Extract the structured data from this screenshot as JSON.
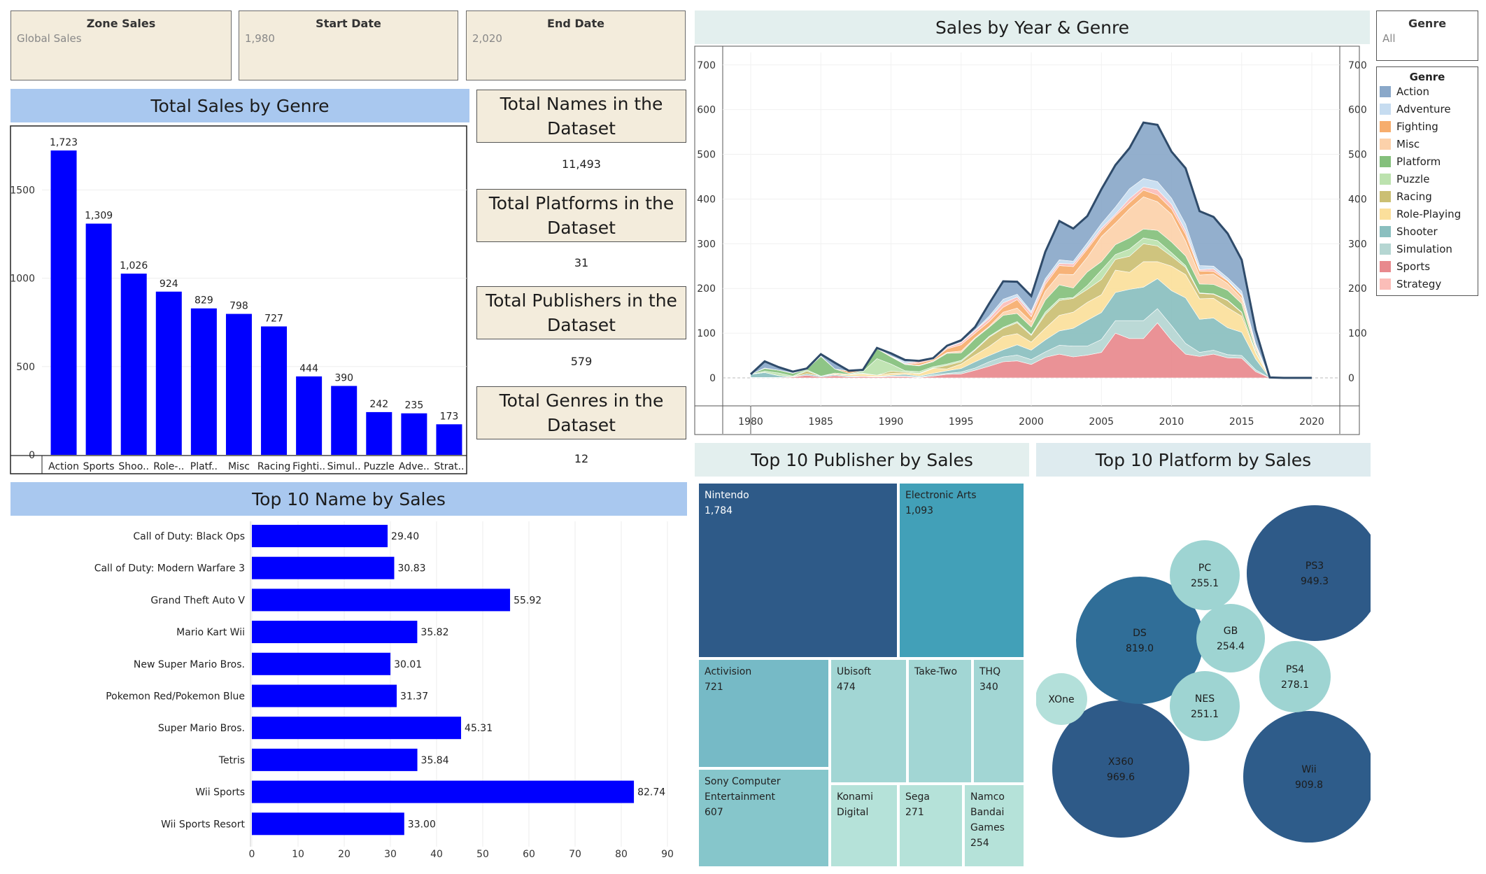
{
  "filters": {
    "zone": {
      "title": "Zone Sales",
      "value": "Global Sales"
    },
    "start": {
      "title": "Start Date",
      "value": "1,980"
    },
    "end": {
      "title": "End Date",
      "value": "2,020"
    },
    "genre": {
      "title": "Genre",
      "value": "All"
    }
  },
  "titles": {
    "genre_sales": "Total Sales by Genre",
    "year_genre": "Sales by Year & Genre",
    "top_names": "Top 10 Name by Sales",
    "top_publishers": "Top 10 Publisher by Sales",
    "top_platforms": "Top 10 Platform by Sales"
  },
  "kpis": [
    {
      "label": "Total Names in the Dataset",
      "value": "11,493"
    },
    {
      "label": "Total Platforms in the Dataset",
      "value": "31"
    },
    {
      "label": "Total Publishers in the Dataset",
      "value": "579"
    },
    {
      "label": "Total Genres in the Dataset",
      "value": "12"
    }
  ],
  "colors": {
    "bar": "#0000ff",
    "title_blue": "#a9c8ef",
    "title_teal": "#e3efee",
    "card": "#f3ecdc"
  },
  "chart_data": [
    {
      "id": "genre_sales",
      "type": "bar",
      "title": "Total Sales by Genre",
      "categories": [
        "Action",
        "Sports",
        "Shoo..",
        "Role-..",
        "Platf..",
        "Misc",
        "Racing",
        "Fighti..",
        "Simul..",
        "Puzzle",
        "Adve..",
        "Strat.."
      ],
      "values": [
        1723,
        1309,
        1026,
        924,
        829,
        798,
        727,
        444,
        390,
        242,
        235,
        173
      ],
      "value_labels": [
        "1,723",
        "1,309",
        "1,026",
        "924",
        "829",
        "798",
        "727",
        "444",
        "390",
        "242",
        "235",
        "173"
      ],
      "yticks": [
        "0",
        "500",
        "1000",
        "1500"
      ],
      "ylim": [
        0,
        1850
      ],
      "color": "#0000ff",
      "grid": true
    },
    {
      "id": "year_genre",
      "type": "area",
      "title": "Sales by Year & Genre",
      "x": [
        1980,
        1981,
        1982,
        1983,
        1984,
        1985,
        1986,
        1987,
        1988,
        1989,
        1990,
        1991,
        1992,
        1993,
        1994,
        1995,
        1996,
        1997,
        1998,
        1999,
        2000,
        2001,
        2002,
        2003,
        2004,
        2005,
        2006,
        2007,
        2008,
        2009,
        2010,
        2011,
        2012,
        2013,
        2014,
        2015,
        2016,
        2017,
        2018,
        2019,
        2020
      ],
      "series": [
        {
          "name": "Sports",
          "color": "#e8898d",
          "values": [
            1,
            1,
            1,
            2,
            6,
            2,
            5,
            2,
            3,
            2,
            3,
            3,
            1,
            4,
            8,
            9,
            17,
            26,
            36,
            38,
            30,
            46,
            53,
            47,
            51,
            57,
            100,
            88,
            88,
            123,
            84,
            53,
            48,
            53,
            45,
            44,
            14,
            0,
            0,
            0,
            0
          ]
        },
        {
          "name": "Simulation",
          "color": "#b5d6d2",
          "values": [
            0,
            0,
            0,
            0,
            0,
            0,
            0,
            0,
            0,
            0,
            1,
            1,
            1,
            3,
            2,
            4,
            5,
            10,
            11,
            13,
            11,
            12,
            20,
            24,
            20,
            29,
            28,
            40,
            40,
            32,
            33,
            24,
            9,
            9,
            7,
            6,
            4,
            0,
            0,
            0,
            0
          ]
        },
        {
          "name": "Shooter",
          "color": "#8abfbf",
          "values": [
            7,
            11,
            4,
            0,
            3,
            2,
            2,
            2,
            1,
            1,
            2,
            4,
            2,
            3,
            6,
            8,
            14,
            14,
            16,
            23,
            21,
            27,
            32,
            40,
            58,
            60,
            63,
            70,
            75,
            67,
            78,
            102,
            74,
            72,
            60,
            52,
            24,
            0,
            0,
            0,
            0
          ]
        },
        {
          "name": "Role-Playing",
          "color": "#fbdf9b",
          "values": [
            0,
            0,
            0,
            0,
            0,
            0,
            2,
            3,
            5,
            3,
            4,
            3,
            5,
            11,
            4,
            10,
            15,
            20,
            30,
            25,
            18,
            26,
            35,
            36,
            40,
            40,
            50,
            38,
            57,
            38,
            55,
            52,
            46,
            44,
            45,
            36,
            14,
            0,
            0,
            0,
            0
          ]
        },
        {
          "name": "Racing",
          "color": "#cbbf73",
          "values": [
            0,
            0,
            0,
            0,
            6,
            0,
            2,
            1,
            1,
            0,
            5,
            2,
            1,
            1,
            8,
            5,
            11,
            21,
            18,
            24,
            15,
            31,
            33,
            31,
            29,
            34,
            24,
            36,
            40,
            35,
            22,
            16,
            12,
            9,
            16,
            8,
            2,
            0,
            0,
            0,
            0
          ]
        },
        {
          "name": "Puzzle",
          "color": "#bce2ae",
          "values": [
            0,
            3,
            6,
            2,
            3,
            0,
            0,
            0,
            4,
            37,
            16,
            3,
            4,
            3,
            3,
            3,
            2,
            2,
            2,
            3,
            2,
            5,
            4,
            2,
            9,
            21,
            11,
            16,
            13,
            12,
            8,
            4,
            1,
            1,
            1,
            1,
            0,
            0,
            0,
            0,
            0
          ]
        },
        {
          "name": "Platform",
          "color": "#84c07c",
          "values": [
            0,
            6,
            6,
            6,
            1,
            44,
            9,
            2,
            2,
            22,
            16,
            14,
            13,
            11,
            24,
            17,
            24,
            20,
            27,
            18,
            17,
            27,
            31,
            21,
            30,
            19,
            22,
            25,
            20,
            23,
            24,
            22,
            20,
            21,
            22,
            19,
            5,
            0,
            0,
            0,
            0
          ]
        },
        {
          "name": "Misc",
          "color": "#fcd1aa",
          "values": [
            0,
            1,
            0,
            1,
            1,
            0,
            0,
            0,
            0,
            1,
            2,
            0,
            1,
            2,
            2,
            4,
            2,
            2,
            7,
            12,
            12,
            20,
            24,
            30,
            33,
            56,
            48,
            65,
            72,
            64,
            62,
            33,
            20,
            23,
            15,
            12,
            6,
            0,
            0,
            0,
            0
          ]
        },
        {
          "name": "Fighting",
          "color": "#f6ad6d",
          "values": [
            0,
            0,
            0,
            0,
            0,
            1,
            0,
            5,
            0,
            0,
            0,
            0,
            5,
            3,
            8,
            14,
            10,
            11,
            11,
            19,
            11,
            15,
            19,
            18,
            18,
            13,
            16,
            14,
            15,
            15,
            12,
            15,
            9,
            6,
            6,
            6,
            4,
            0,
            0,
            0,
            0
          ]
        },
        {
          "name": "Strategy",
          "color": "#fbbdb8",
          "values": [
            0,
            0,
            0,
            0,
            0,
            0,
            0,
            0,
            0,
            0,
            0,
            2,
            4,
            1,
            3,
            5,
            6,
            7,
            10,
            6,
            8,
            7,
            5,
            6,
            5,
            6,
            4,
            9,
            7,
            12,
            10,
            8,
            3,
            6,
            1,
            2,
            1,
            0,
            0,
            0,
            0
          ]
        },
        {
          "name": "Adventure",
          "color": "#c6dcf0",
          "values": [
            0,
            0,
            0,
            0,
            0,
            0,
            0,
            0,
            0,
            0,
            0,
            4,
            0,
            0,
            1,
            1,
            1,
            5,
            8,
            6,
            4,
            6,
            8,
            6,
            9,
            10,
            16,
            22,
            19,
            18,
            14,
            15,
            9,
            6,
            6,
            8,
            2,
            0,
            0,
            0,
            0
          ]
        },
        {
          "name": "Action",
          "color": "#8aa8c9",
          "values": [
            0,
            15,
            7,
            3,
            1,
            4,
            14,
            1,
            2,
            1,
            6,
            4,
            1,
            2,
            3,
            4,
            7,
            28,
            40,
            28,
            34,
            60,
            87,
            73,
            60,
            77,
            94,
            91,
            125,
            127,
            104,
            125,
            122,
            110,
            99,
            70,
            31,
            1,
            0,
            0,
            0
          ]
        }
      ],
      "outline_color": "#2f4b6a",
      "xticks": [
        "1980",
        "1985",
        "1990",
        "1995",
        "2000",
        "2005",
        "2010",
        "2015",
        "2020"
      ],
      "yticks": [
        "0",
        "100",
        "200",
        "300",
        "400",
        "500",
        "600",
        "700"
      ],
      "ylim": [
        0,
        720
      ],
      "xlim": [
        1980,
        2020
      ],
      "legend": {
        "title": "Genre",
        "placement": "right",
        "order": [
          "Action",
          "Adventure",
          "Fighting",
          "Misc",
          "Platform",
          "Puzzle",
          "Racing",
          "Role-Playing",
          "Shooter",
          "Simulation",
          "Sports",
          "Strategy"
        ]
      }
    },
    {
      "id": "top_names",
      "type": "bar",
      "orientation": "horizontal",
      "title": "Top 10 Name by Sales",
      "categories": [
        "Call of Duty: Black Ops",
        "Call of Duty: Modern Warfare 3",
        "Grand Theft Auto V",
        "Mario Kart Wii",
        "New Super Mario Bros.",
        "Pokemon Red/Pokemon Blue",
        "Super Mario Bros.",
        "Tetris",
        "Wii Sports",
        "Wii Sports Resort"
      ],
      "values": [
        29.4,
        30.83,
        55.92,
        35.82,
        30.01,
        31.37,
        45.31,
        35.84,
        82.74,
        33.0
      ],
      "value_labels": [
        "29.40",
        "30.83",
        "55.92",
        "35.82",
        "30.01",
        "31.37",
        "45.31",
        "35.84",
        "82.74",
        "33.00"
      ],
      "xticks": [
        "0",
        "10",
        "20",
        "30",
        "40",
        "50",
        "60",
        "70",
        "80",
        "90"
      ],
      "xlim": [
        0,
        90
      ],
      "color": "#0000ff",
      "grid": true
    },
    {
      "id": "top_publishers",
      "type": "treemap",
      "title": "Top 10 Publisher by Sales",
      "items": [
        {
          "name": "Nintendo",
          "value": "1,784",
          "color": "#2e5a88"
        },
        {
          "name": "Electronic Arts",
          "value": "1,093",
          "color": "#42a0b8"
        },
        {
          "name": "Activision",
          "value": "721",
          "color": "#76bac6"
        },
        {
          "name": "Ubisoft",
          "value": "474",
          "color": "#a2d6d4"
        },
        {
          "name": "Take-Two",
          "value": "",
          "color": "#a2d6d4"
        },
        {
          "name": "THQ",
          "value": "340",
          "color": "#a2d6d4"
        },
        {
          "name": "Sony Computer Entertainment",
          "value": "607",
          "color": "#86c6cb"
        },
        {
          "name": "Konami Digital",
          "value": "",
          "color": "#b5e2d9"
        },
        {
          "name": "Sega",
          "value": "271",
          "color": "#b5e2d9"
        },
        {
          "name": "Namco Bandai Games",
          "value": "254",
          "color": "#b5e2d9"
        }
      ]
    },
    {
      "id": "top_platforms",
      "type": "bubble",
      "title": "Top 10 Platform by Sales",
      "items": [
        {
          "name": "X360",
          "value": "969.6",
          "color": "#2e5a88"
        },
        {
          "name": "PS3",
          "value": "949.3",
          "color": "#2e5a88"
        },
        {
          "name": "Wii",
          "value": "909.8",
          "color": "#2e5c8a"
        },
        {
          "name": "DS",
          "value": "819.0",
          "color": "#306e98"
        },
        {
          "name": "PS4",
          "value": "278.1",
          "color": "#9ed4d2"
        },
        {
          "name": "PC",
          "value": "255.1",
          "color": "#9ed4d2"
        },
        {
          "name": "GB",
          "value": "254.4",
          "color": "#9ed4d2"
        },
        {
          "name": "NES",
          "value": "251.1",
          "color": "#9ed4d2"
        },
        {
          "name": "XOne",
          "value": "",
          "color": "#b3e0da"
        }
      ]
    }
  ]
}
